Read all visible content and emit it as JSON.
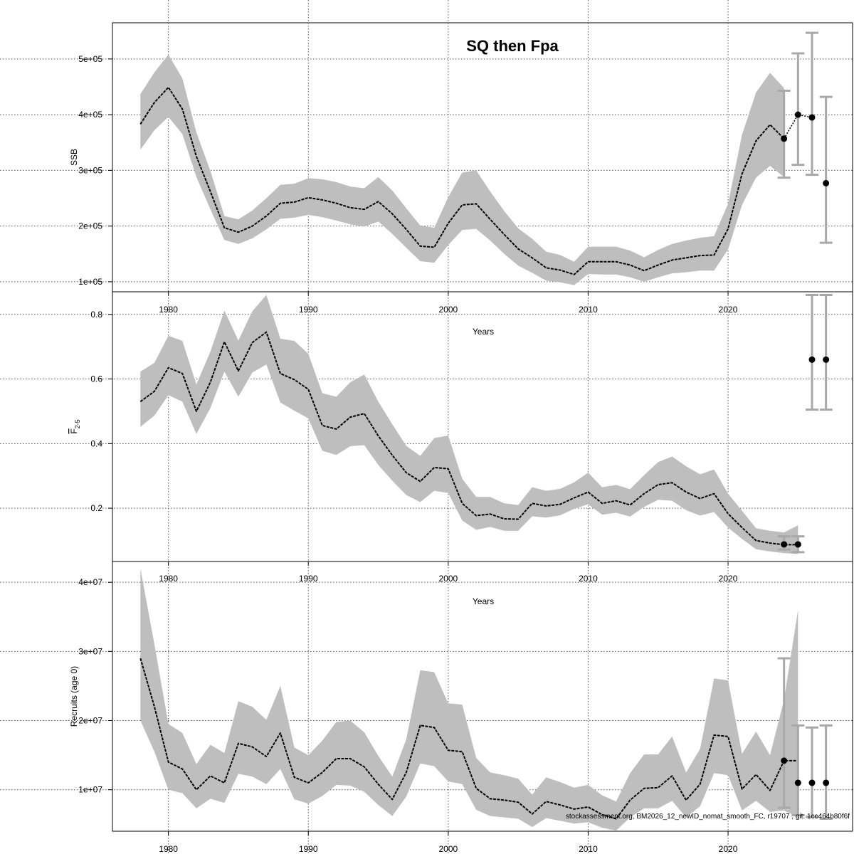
{
  "footer_text": "stockassessment.org, BM2026_12_newID_nomat_smooth_FC, r19707 , git: 1cc464b80f6f",
  "chart_data": [
    {
      "id": "ssb",
      "type": "line",
      "title": "SQ then Fpa",
      "xlabel": "",
      "ylabel": "SSB",
      "ylabel_sub": "",
      "xlim": [
        1976,
        2028.9
      ],
      "ylim": [
        82000,
        565000
      ],
      "xticks": [
        1980,
        1990,
        2000,
        2010,
        2020
      ],
      "yticks": [
        100000,
        200000,
        300000,
        400000,
        500000
      ],
      "ytick_labels": [
        "1e+05",
        "2e+05",
        "3e+05",
        "4e+05",
        "5e+05"
      ],
      "grid": true,
      "band_color": "#bebebe",
      "years": [
        1978,
        1979,
        1980,
        1981,
        1982,
        1983,
        1984,
        1985,
        1986,
        1987,
        1988,
        1989,
        1990,
        1991,
        1992,
        1993,
        1994,
        1995,
        1996,
        1997,
        1998,
        1999,
        2000,
        2001,
        2002,
        2003,
        2004,
        2005,
        2006,
        2007,
        2008,
        2009,
        2010,
        2011,
        2012,
        2013,
        2014,
        2015,
        2016,
        2017,
        2018,
        2019,
        2020,
        2021,
        2022,
        2023,
        2024
      ],
      "estimate": [
        383000,
        422000,
        449000,
        410000,
        325000,
        262000,
        197000,
        189000,
        200000,
        218000,
        241000,
        243000,
        251000,
        247000,
        241000,
        233000,
        230000,
        244000,
        222000,
        194000,
        164000,
        162000,
        205000,
        238000,
        240000,
        212000,
        185000,
        159000,
        143000,
        125000,
        121000,
        113000,
        136000,
        136000,
        136000,
        130000,
        120000,
        130000,
        139000,
        143000,
        147000,
        148000,
        195000,
        294000,
        353000,
        382000,
        357000
      ],
      "lower": [
        337000,
        372000,
        396000,
        365000,
        288000,
        230000,
        175000,
        168000,
        178000,
        194000,
        213000,
        215000,
        220000,
        216000,
        210000,
        203000,
        199000,
        208000,
        186000,
        161000,
        137000,
        134000,
        166000,
        193000,
        195000,
        174000,
        150000,
        129000,
        116000,
        102000,
        99000,
        94000,
        114000,
        113000,
        113000,
        108000,
        100000,
        108000,
        115000,
        117000,
        120000,
        120000,
        158000,
        238000,
        287000,
        308000,
        288000
      ],
      "upper": [
        437000,
        476000,
        508000,
        465000,
        368000,
        299000,
        218000,
        212000,
        228000,
        250000,
        274000,
        276000,
        286000,
        284000,
        279000,
        271000,
        268000,
        288000,
        264000,
        232000,
        201000,
        197000,
        252000,
        296000,
        300000,
        262000,
        227000,
        196000,
        177000,
        154000,
        148000,
        136000,
        163000,
        163000,
        163000,
        156000,
        144000,
        157000,
        168000,
        174000,
        179000,
        182000,
        240000,
        364000,
        440000,
        475000,
        448000
      ],
      "forecast_line": [
        [
          2024,
          357000
        ],
        [
          2025,
          400000
        ],
        [
          2026,
          395000
        ]
      ],
      "forecast": [
        {
          "year": 2024,
          "value": 357000,
          "lower": 287000,
          "upper": 443000
        },
        {
          "year": 2025,
          "value": 400000,
          "lower": 310000,
          "upper": 510000
        },
        {
          "year": 2026,
          "value": 395000,
          "lower": 292000,
          "upper": 547000
        },
        {
          "year": 2027,
          "value": 277000,
          "lower": 170000,
          "upper": 432000
        }
      ]
    },
    {
      "id": "fbar",
      "type": "line",
      "title": "",
      "xlabel": "Years",
      "ylabel": "F",
      "ylabel_sub": "2-5",
      "xlim": [
        1976,
        2028.9
      ],
      "ylim": [
        0.035,
        0.87
      ],
      "xticks": [
        1980,
        1990,
        2000,
        2010,
        2020
      ],
      "yticks": [
        0.2,
        0.4,
        0.6,
        0.8
      ],
      "ytick_labels": [
        "0.2",
        "0.4",
        "0.6",
        "0.8"
      ],
      "grid": true,
      "band_color": "#bebebe",
      "years": [
        1978,
        1979,
        1980,
        1981,
        1982,
        1983,
        1984,
        1985,
        1986,
        1987,
        1988,
        1989,
        1990,
        1991,
        1992,
        1993,
        1994,
        1995,
        1996,
        1997,
        1998,
        1999,
        2000,
        2001,
        2002,
        2003,
        2004,
        2005,
        2006,
        2007,
        2008,
        2009,
        2010,
        2011,
        2012,
        2013,
        2014,
        2015,
        2016,
        2017,
        2018,
        2019,
        2020,
        2021,
        2022,
        2023,
        2024,
        2025
      ],
      "estimate": [
        0.53,
        0.562,
        0.635,
        0.617,
        0.5,
        0.59,
        0.715,
        0.625,
        0.713,
        0.745,
        0.617,
        0.598,
        0.568,
        0.456,
        0.445,
        0.482,
        0.493,
        0.424,
        0.364,
        0.31,
        0.283,
        0.326,
        0.322,
        0.215,
        0.177,
        0.182,
        0.167,
        0.166,
        0.215,
        0.207,
        0.212,
        0.232,
        0.25,
        0.215,
        0.223,
        0.21,
        0.245,
        0.273,
        0.279,
        0.25,
        0.23,
        0.245,
        0.183,
        0.14,
        0.1,
        0.092,
        0.087,
        0.087
      ],
      "lower": [
        0.452,
        0.487,
        0.55,
        0.53,
        0.43,
        0.51,
        0.623,
        0.545,
        0.62,
        0.645,
        0.527,
        0.502,
        0.478,
        0.378,
        0.365,
        0.392,
        0.395,
        0.334,
        0.285,
        0.241,
        0.219,
        0.254,
        0.247,
        0.162,
        0.133,
        0.142,
        0.13,
        0.13,
        0.175,
        0.171,
        0.178,
        0.198,
        0.212,
        0.18,
        0.186,
        0.174,
        0.204,
        0.226,
        0.223,
        0.194,
        0.177,
        0.188,
        0.14,
        0.105,
        0.073,
        0.066,
        0.061,
        0.058
      ],
      "upper": [
        0.623,
        0.65,
        0.734,
        0.718,
        0.583,
        0.685,
        0.812,
        0.719,
        0.81,
        0.86,
        0.725,
        0.718,
        0.678,
        0.556,
        0.545,
        0.59,
        0.614,
        0.53,
        0.46,
        0.393,
        0.362,
        0.417,
        0.425,
        0.291,
        0.235,
        0.235,
        0.215,
        0.21,
        0.265,
        0.254,
        0.26,
        0.28,
        0.31,
        0.265,
        0.272,
        0.259,
        0.302,
        0.343,
        0.36,
        0.33,
        0.305,
        0.32,
        0.245,
        0.192,
        0.138,
        0.13,
        0.125,
        0.147
      ],
      "forecast_line": [],
      "forecast": [
        {
          "year": 2024,
          "value": 0.088,
          "lower": 0.072,
          "upper": 0.113
        },
        {
          "year": 2025,
          "value": 0.088,
          "lower": 0.064,
          "upper": 0.113
        },
        {
          "year": 2026,
          "value": 0.66,
          "lower": 0.505,
          "upper": 0.86
        },
        {
          "year": 2027,
          "value": 0.66,
          "lower": 0.505,
          "upper": 0.86
        }
      ]
    },
    {
      "id": "recruits",
      "type": "line",
      "title": "",
      "xlabel": "Years",
      "ylabel": "Recruits (age 0)",
      "ylabel_sub": "",
      "xlim": [
        1976,
        2028.9
      ],
      "ylim": [
        4000000,
        43000000
      ],
      "xticks": [
        1980,
        1990,
        2000,
        2010,
        2020
      ],
      "yticks": [
        10000000,
        20000000,
        30000000,
        40000000
      ],
      "ytick_labels": [
        "1e+07",
        "2e+07",
        "3e+07",
        "4e+07"
      ],
      "grid": true,
      "band_color": "#bebebe",
      "years": [
        1978,
        1979,
        1980,
        1981,
        1982,
        1983,
        1984,
        1985,
        1986,
        1987,
        1988,
        1989,
        1990,
        1991,
        1992,
        1993,
        1994,
        1995,
        1996,
        1997,
        1998,
        1999,
        2000,
        2001,
        2002,
        2003,
        2004,
        2005,
        2006,
        2007,
        2008,
        2009,
        2010,
        2011,
        2012,
        2013,
        2014,
        2015,
        2016,
        2017,
        2018,
        2019,
        2020,
        2021,
        2022,
        2023,
        2024,
        2025
      ],
      "estimate": [
        29000000,
        22000000,
        14000000,
        13000000,
        10000000,
        12000000,
        11000000,
        16700000,
        16200000,
        14800000,
        18200000,
        11800000,
        11000000,
        12500000,
        14500000,
        14500000,
        13300000,
        10800000,
        8600000,
        12500000,
        19300000,
        19000000,
        15700000,
        15500000,
        10200000,
        8700000,
        8500000,
        8200000,
        6500000,
        8300000,
        7800000,
        7200000,
        7500000,
        6400000,
        5800000,
        8500000,
        10200000,
        10300000,
        12000000,
        8500000,
        10800000,
        17900000,
        17700000,
        10100000,
        12200000,
        9900000,
        14200000,
        14200000
      ],
      "lower": [
        20000000,
        15500000,
        10000000,
        9500000,
        7300000,
        8700000,
        8100000,
        12300000,
        11900000,
        10800000,
        13000000,
        8600000,
        8000000,
        9100000,
        10700000,
        10600000,
        9700000,
        7800000,
        6200000,
        9000000,
        13800000,
        13400000,
        11200000,
        10800000,
        7100000,
        6200000,
        6000000,
        5800000,
        4600000,
        5900000,
        5500000,
        5100000,
        5300000,
        4500000,
        4100000,
        6000000,
        7300000,
        7300000,
        8400000,
        6000000,
        7600000,
        12400000,
        12100000,
        7000000,
        8400000,
        6800000,
        7000000,
        6000000
      ],
      "upper": [
        42000000,
        31000000,
        19500000,
        18200000,
        13700000,
        16500000,
        15300000,
        22800000,
        22000000,
        20100000,
        25000000,
        16100000,
        15000000,
        17100000,
        19800000,
        20000000,
        18300000,
        14900000,
        11900000,
        17300000,
        27300000,
        27000000,
        22500000,
        22300000,
        14600000,
        12500000,
        12100000,
        11600000,
        9300000,
        11800000,
        11100000,
        10300000,
        10700000,
        9200000,
        8300000,
        12400000,
        15100000,
        15100000,
        17700000,
        12500000,
        15900000,
        26100000,
        25800000,
        15200000,
        18400000,
        15000000,
        23000000,
        36000000
      ],
      "forecast_line": [],
      "forecast": [
        {
          "year": 2024,
          "value": 14200000,
          "lower": 7400000,
          "upper": 29000000
        },
        {
          "year": 2025,
          "value": 11000000,
          "lower": 6300000,
          "upper": 19300000
        },
        {
          "year": 2026,
          "value": 11000000,
          "lower": 6100000,
          "upper": 19000000
        },
        {
          "year": 2027,
          "value": 11000000,
          "lower": 5800000,
          "upper": 19300000
        }
      ]
    }
  ]
}
